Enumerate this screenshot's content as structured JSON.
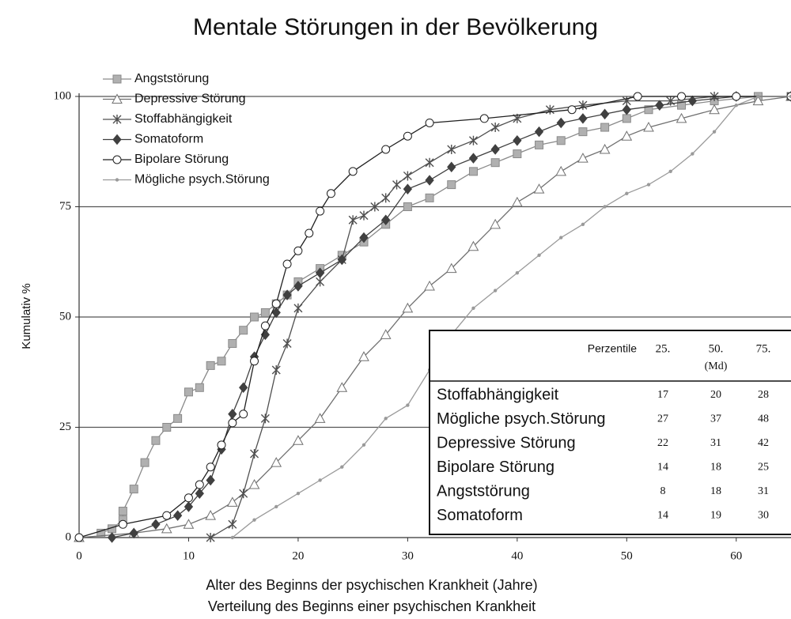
{
  "chart_data": {
    "type": "line",
    "title": "Mentale Störungen in der Bevölkerung",
    "xlabel": "Alter des Beginns der psychischen Krankheit (Jahre)",
    "caption": "Verteilung des Beginns einer psychischen Krankheit",
    "ylabel": "Kumulativ %",
    "xlim": [
      0,
      65
    ],
    "ylim": [
      0,
      100
    ],
    "xticks": [
      0,
      10,
      20,
      30,
      40,
      50,
      60
    ],
    "yticks": [
      0,
      25,
      50,
      75,
      100
    ],
    "grid": true,
    "legend": "upper left",
    "series": [
      {
        "name": "Angststörung",
        "color": "#8a8a8a",
        "marker": "square",
        "x": [
          2,
          3,
          4,
          4,
          5,
          6,
          7,
          8,
          9,
          10,
          11,
          12,
          13,
          14,
          15,
          16,
          17,
          18,
          19,
          20,
          22,
          24,
          26,
          28,
          30,
          32,
          34,
          36,
          38,
          40,
          42,
          44,
          46,
          48,
          50,
          52,
          55,
          58,
          62,
          65
        ],
        "values": [
          1,
          2,
          4,
          6,
          11,
          17,
          22,
          25,
          27,
          33,
          34,
          39,
          40,
          44,
          47,
          50,
          51,
          53,
          55,
          58,
          61,
          64,
          67,
          71,
          75,
          77,
          80,
          83,
          85,
          87,
          89,
          90,
          92,
          93,
          95,
          97,
          98,
          99,
          100,
          100
        ]
      },
      {
        "name": "Depressive Störung",
        "color": "#707070",
        "marker": "triangle",
        "x": [
          0,
          5,
          8,
          10,
          12,
          14,
          16,
          18,
          20,
          22,
          24,
          26,
          28,
          30,
          32,
          34,
          36,
          38,
          40,
          42,
          44,
          46,
          48,
          50,
          52,
          55,
          58,
          62,
          65
        ],
        "values": [
          0,
          1,
          2,
          3,
          5,
          8,
          12,
          17,
          22,
          27,
          34,
          41,
          46,
          52,
          57,
          61,
          66,
          71,
          76,
          79,
          83,
          86,
          88,
          91,
          93,
          95,
          97,
          99,
          100
        ]
      },
      {
        "name": "Stoffabhängigkeit",
        "color": "#505050",
        "marker": "star",
        "x": [
          12,
          14,
          15,
          16,
          17,
          18,
          19,
          20,
          22,
          24,
          25,
          26,
          27,
          28,
          29,
          30,
          32,
          34,
          36,
          38,
          40,
          43,
          46,
          50,
          54,
          58,
          65
        ],
        "values": [
          0,
          3,
          10,
          19,
          27,
          38,
          44,
          52,
          58,
          63,
          72,
          73,
          75,
          77,
          80,
          82,
          85,
          88,
          90,
          93,
          95,
          97,
          98,
          99,
          99,
          100,
          100
        ]
      },
      {
        "name": "Somatoform",
        "color": "#404040",
        "marker": "diamond",
        "x": [
          3,
          5,
          7,
          9,
          10,
          11,
          12,
          13,
          14,
          15,
          16,
          17,
          18,
          19,
          20,
          22,
          24,
          26,
          28,
          30,
          32,
          34,
          36,
          38,
          40,
          42,
          44,
          46,
          48,
          50,
          53,
          56,
          60,
          65
        ],
        "values": [
          0,
          1,
          3,
          5,
          7,
          10,
          13,
          20,
          28,
          34,
          41,
          46,
          51,
          55,
          57,
          60,
          63,
          68,
          72,
          79,
          81,
          84,
          86,
          88,
          90,
          92,
          94,
          95,
          96,
          97,
          98,
          99,
          100,
          100
        ]
      },
      {
        "name": "Bipolare Störung",
        "color": "#202020",
        "marker": "circle",
        "x": [
          0,
          4,
          8,
          10,
          11,
          12,
          13,
          14,
          15,
          16,
          17,
          18,
          19,
          20,
          21,
          22,
          23,
          25,
          28,
          30,
          32,
          37,
          45,
          51,
          55,
          60,
          65
        ],
        "values": [
          0,
          3,
          5,
          9,
          12,
          16,
          21,
          26,
          28,
          40,
          48,
          53,
          62,
          65,
          69,
          74,
          78,
          83,
          88,
          91,
          94,
          95,
          97,
          100,
          100,
          100,
          100
        ]
      },
      {
        "name": "Mögliche psych.Störung",
        "color": "#9a9a9a",
        "marker": "dot",
        "x": [
          14,
          16,
          18,
          20,
          22,
          24,
          26,
          28,
          30,
          32,
          34,
          36,
          38,
          40,
          42,
          44,
          46,
          48,
          50,
          52,
          54,
          56,
          58,
          60,
          62,
          65
        ],
        "values": [
          0,
          4,
          7,
          10,
          13,
          16,
          21,
          27,
          30,
          38,
          46,
          52,
          56,
          60,
          64,
          68,
          71,
          75,
          78,
          80,
          83,
          87,
          92,
          98,
          100,
          100
        ]
      }
    ]
  },
  "table": {
    "header": [
      "Perzentile",
      "25.",
      "50.",
      "75."
    ],
    "header_note": "(Md)",
    "rows": [
      [
        "Stoffabhängigkeit",
        "17",
        "20",
        "28"
      ],
      [
        "Mögliche psych.Störung",
        "27",
        "37",
        "48"
      ],
      [
        "Depressive Störung",
        "22",
        "31",
        "42"
      ],
      [
        "Bipolare Störung",
        "14",
        "18",
        "25"
      ],
      [
        "Angststörung",
        "8",
        "18",
        "31"
      ],
      [
        "Somatoform",
        "14",
        "19",
        "30"
      ]
    ]
  }
}
